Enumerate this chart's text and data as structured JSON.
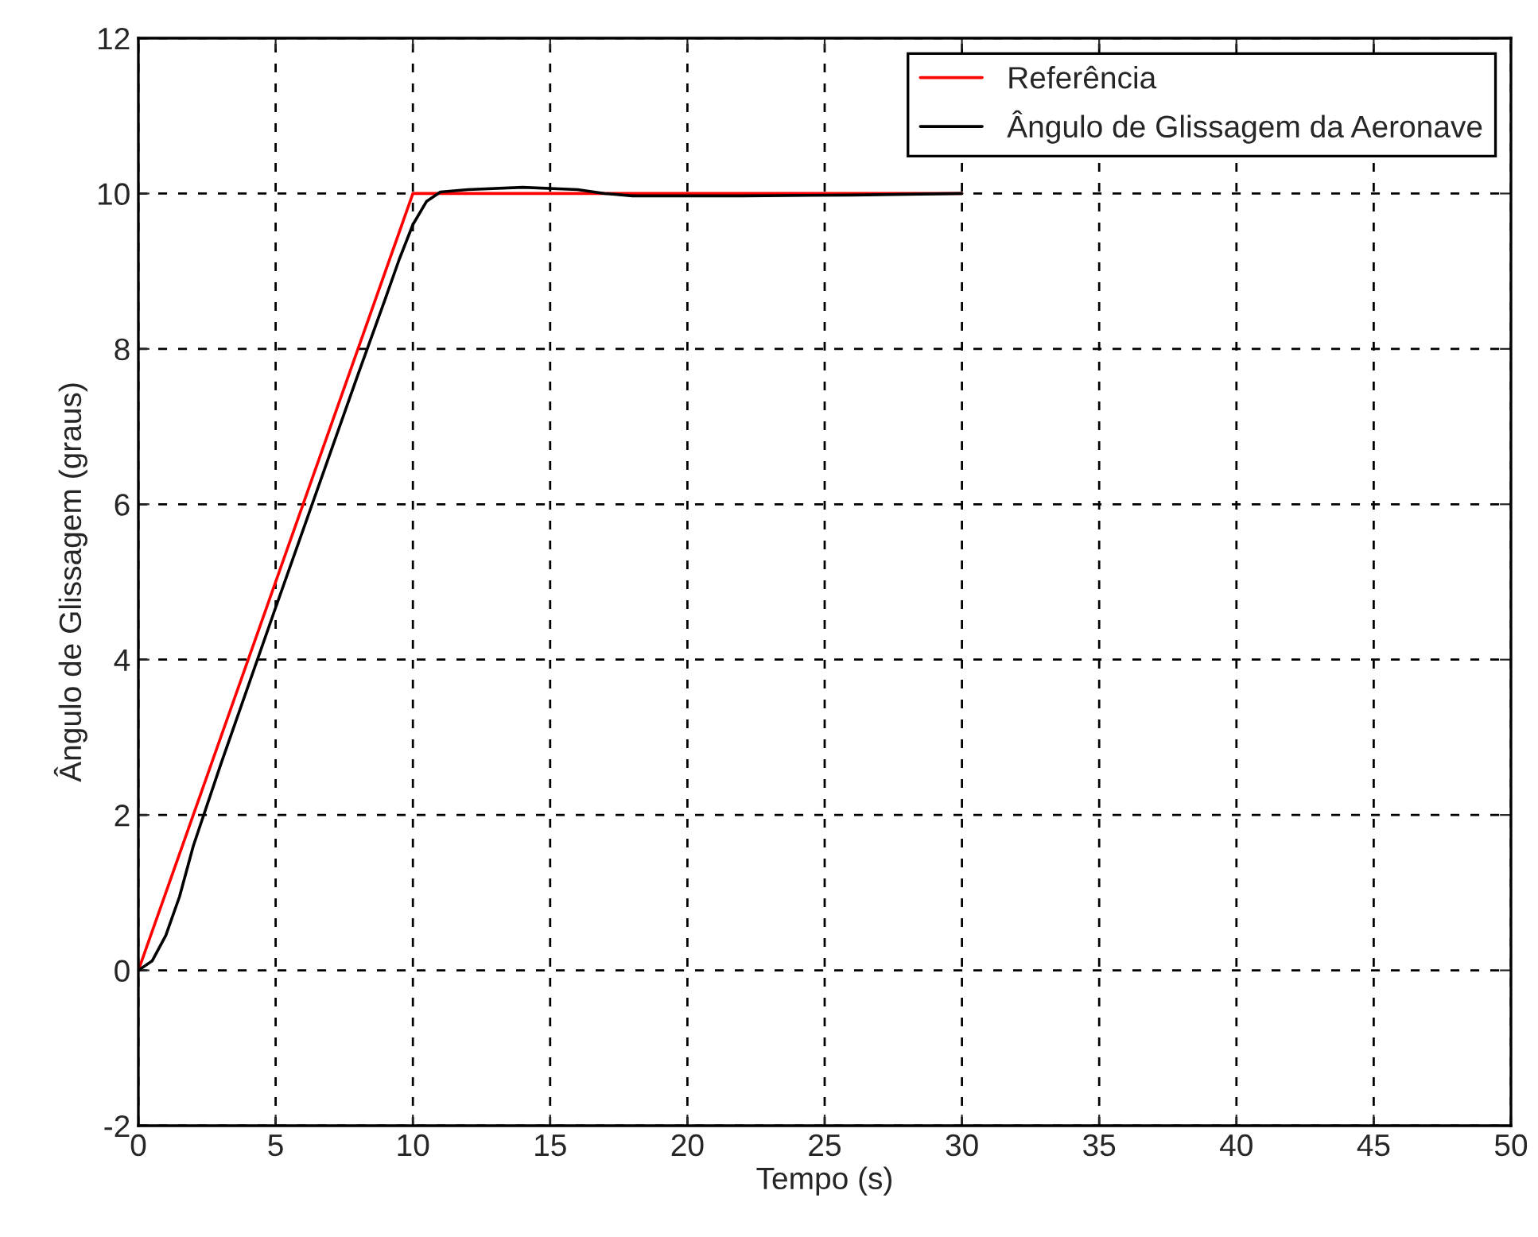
{
  "chart_data": {
    "type": "line",
    "xlabel": "Tempo (s)",
    "ylabel": "Ângulo de Glissagem (graus)",
    "xlim": [
      0,
      50
    ],
    "ylim": [
      -2,
      12
    ],
    "xticks": [
      0,
      5,
      10,
      15,
      20,
      25,
      30,
      35,
      40,
      45,
      50
    ],
    "yticks": [
      -2,
      0,
      2,
      4,
      6,
      8,
      10,
      12
    ],
    "grid": true,
    "legend": "top right",
    "line_style": "solid",
    "series": [
      {
        "name": "Referência",
        "color": "#ff0000",
        "x": [
          0,
          10,
          30
        ],
        "values": [
          0,
          10,
          10
        ]
      },
      {
        "name": "Ângulo de Glissagem da Aeronave",
        "color": "#000000",
        "x": [
          0,
          0.5,
          1,
          1.5,
          2,
          3,
          5,
          8,
          9,
          9.5,
          10,
          10.5,
          11,
          12,
          14,
          16,
          17,
          18,
          22,
          26,
          30
        ],
        "values": [
          0,
          0.12,
          0.45,
          0.95,
          1.6,
          2.65,
          4.67,
          7.67,
          8.65,
          9.15,
          9.6,
          9.9,
          10.02,
          10.05,
          10.08,
          10.05,
          10.0,
          9.97,
          9.97,
          9.98,
          10.0
        ]
      }
    ]
  }
}
